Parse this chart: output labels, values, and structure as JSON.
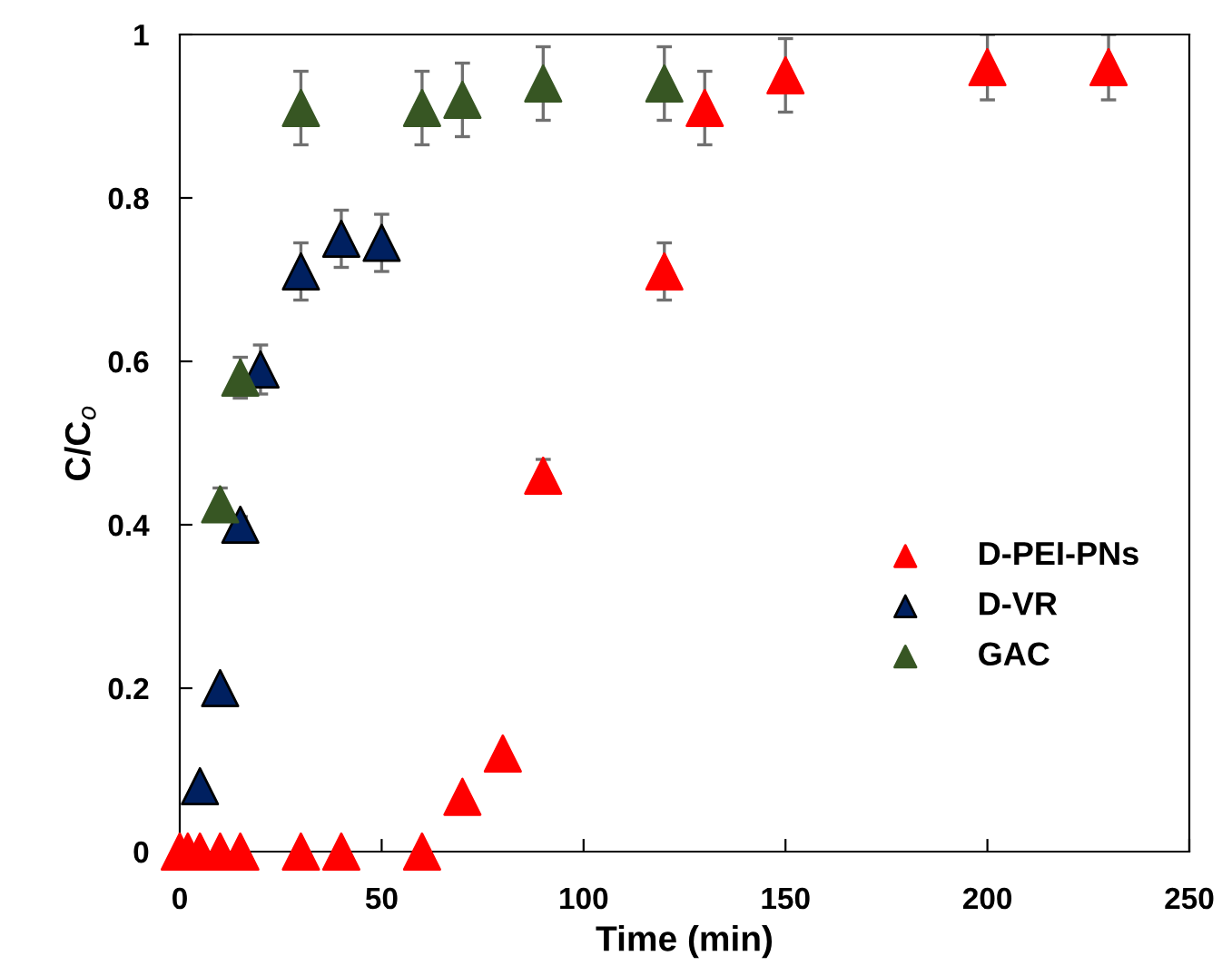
{
  "chart_data": {
    "type": "scatter",
    "xlabel": "Time (min)",
    "ylabel": "C/C$_{o}$",
    "xlim": [
      0,
      250
    ],
    "ylim": [
      0,
      1
    ],
    "xticks": [
      0,
      50,
      100,
      150,
      200,
      250
    ],
    "yticks": [
      0,
      0.2,
      0.4,
      0.6,
      0.8,
      1
    ],
    "marker": "triangle",
    "legend": "right",
    "grid": false,
    "series": [
      {
        "name": "D-PEI-PNs",
        "color": "#ff0000",
        "x": [
          0,
          2,
          5,
          10,
          15,
          30,
          40,
          60,
          70,
          80,
          90,
          120,
          130,
          150,
          200,
          230
        ],
        "values": [
          0,
          0,
          0,
          0,
          0,
          0,
          0,
          0,
          0.067,
          0.12,
          0.46,
          0.71,
          0.91,
          0.95,
          0.96,
          0.96
        ],
        "errors": [
          null,
          null,
          null,
          null,
          null,
          null,
          null,
          null,
          null,
          null,
          0.02,
          0.035,
          0.045,
          0.045,
          0.04,
          0.04
        ]
      },
      {
        "name": "D-VR",
        "color": "#002060",
        "x": [
          5,
          10,
          15,
          20,
          30,
          40,
          50
        ],
        "values": [
          0.08,
          0.2,
          0.4,
          0.59,
          0.71,
          0.75,
          0.745
        ],
        "errors": [
          null,
          null,
          0.01,
          0.03,
          0.035,
          0.035,
          0.035
        ]
      },
      {
        "name": "GAC",
        "color": "#375623",
        "x": [
          10,
          15,
          30,
          60,
          70,
          90,
          120
        ],
        "values": [
          0.425,
          0.58,
          0.91,
          0.91,
          0.92,
          0.94,
          0.94
        ],
        "errors": [
          0.02,
          0.025,
          0.045,
          0.045,
          0.045,
          0.045,
          0.045
        ]
      }
    ]
  }
}
